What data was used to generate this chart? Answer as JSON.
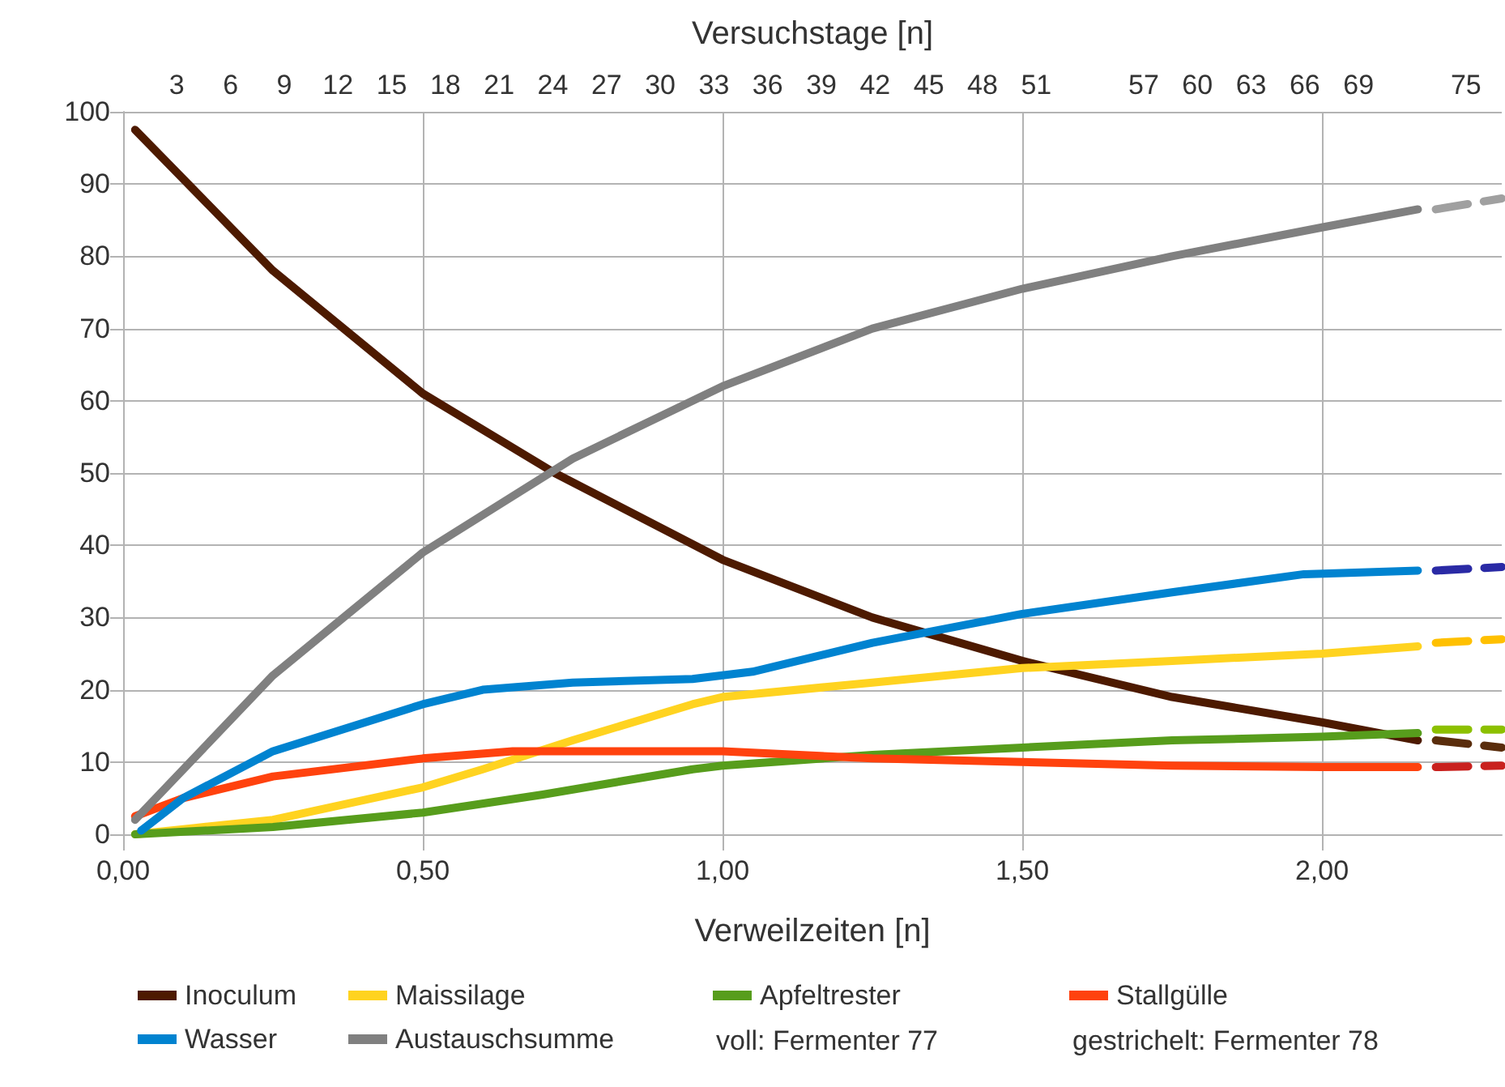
{
  "chart_data": {
    "type": "line",
    "xlabel": "Verweilzeiten [n]",
    "x2label": "Versuchstage [n]",
    "xlim": [
      0,
      2.3
    ],
    "xticks": [
      {
        "value": 0,
        "label": "0,00"
      },
      {
        "value": 0.5,
        "label": "0,50"
      },
      {
        "value": 1,
        "label": "1,00"
      },
      {
        "value": 1.5,
        "label": "1,50"
      },
      {
        "value": 2,
        "label": "2,00"
      }
    ],
    "x2lim": [
      0,
      77
    ],
    "x2ticks": [
      3,
      6,
      9,
      12,
      15,
      18,
      21,
      24,
      27,
      30,
      33,
      36,
      39,
      42,
      45,
      48,
      51,
      57,
      60,
      63,
      66,
      69,
      75
    ],
    "ylim": [
      0,
      100
    ],
    "yticks": [
      0,
      10,
      20,
      30,
      40,
      50,
      60,
      70,
      80,
      90,
      100
    ],
    "grid": true,
    "legend": "bottom",
    "marker": "none",
    "line_style": "solid",
    "annotations": [
      "voll: Fermenter 77",
      "gestrichelt: Fermenter 78"
    ],
    "series": [
      {
        "name": "Inoculum",
        "color": "#4d1a00",
        "x": [
          0.02,
          0.25,
          0.5,
          0.72,
          1.0,
          1.25,
          1.5,
          1.75,
          2.0,
          2.16
        ],
        "values": [
          97.5,
          78,
          61,
          50,
          38,
          30,
          24,
          19,
          15.5,
          13
        ]
      },
      {
        "name": "Maissilage",
        "color": "#ffd320",
        "x": [
          0.02,
          0.25,
          0.5,
          0.6,
          0.75,
          0.95,
          1.0,
          1.25,
          1.5,
          1.75,
          2.0,
          2.16
        ],
        "values": [
          0,
          2,
          6.5,
          9,
          13,
          18,
          19,
          21,
          23,
          24,
          25,
          26
        ]
      },
      {
        "name": "Apfeltrester",
        "color": "#579d1c",
        "x": [
          0.02,
          0.25,
          0.5,
          0.7,
          0.95,
          1.0,
          1.25,
          1.5,
          1.75,
          2.0,
          2.16
        ],
        "values": [
          0,
          1,
          3,
          5.5,
          9,
          9.5,
          11,
          12,
          13,
          13.5,
          14
        ]
      },
      {
        "name": "Stallgülle",
        "color": "#ff420e",
        "x": [
          0.02,
          0.1,
          0.25,
          0.5,
          0.65,
          1.0,
          1.25,
          1.5,
          1.75,
          2.0,
          2.16
        ],
        "values": [
          2.5,
          5,
          8,
          10.5,
          11.5,
          11.5,
          10.5,
          10,
          9.5,
          9.3,
          9.3
        ]
      },
      {
        "name": "Wasser",
        "color": "#0083d0",
        "x": [
          0.03,
          0.1,
          0.25,
          0.5,
          0.6,
          0.75,
          0.95,
          1.0,
          1.05,
          1.25,
          1.5,
          1.75,
          1.97,
          2.16
        ],
        "values": [
          0.5,
          5,
          11.5,
          18,
          20,
          21,
          21.5,
          22,
          22.5,
          26.5,
          30.5,
          33.5,
          36,
          36.5
        ]
      },
      {
        "name": "Austauschsumme",
        "color": "#808080",
        "x": [
          0.02,
          0.25,
          0.5,
          0.75,
          1.0,
          1.25,
          1.5,
          1.75,
          2.0,
          2.16
        ],
        "values": [
          2,
          22,
          39,
          52,
          62,
          70,
          75.5,
          80,
          84,
          86.5
        ]
      },
      {
        "color": "#5a2d0c",
        "line_style": "dashed",
        "x": [
          2.19,
          2.3
        ],
        "values": [
          13,
          12
        ]
      },
      {
        "color": "#ffc000",
        "line_style": "dashed",
        "x": [
          2.19,
          2.3
        ],
        "values": [
          26.5,
          27
        ]
      },
      {
        "color": "#8cc000",
        "line_style": "dashed",
        "x": [
          2.19,
          2.3
        ],
        "values": [
          14.5,
          14.5
        ]
      },
      {
        "color": "#c9211e",
        "line_style": "dashed",
        "x": [
          2.19,
          2.3
        ],
        "values": [
          9.3,
          9.5
        ]
      },
      {
        "color": "#2a2aa5",
        "line_style": "dashed",
        "x": [
          2.19,
          2.3
        ],
        "values": [
          36.5,
          37
        ]
      },
      {
        "color": "#a0a0a0",
        "line_style": "dashed",
        "x": [
          2.19,
          2.3
        ],
        "values": [
          86.5,
          88
        ]
      }
    ]
  }
}
